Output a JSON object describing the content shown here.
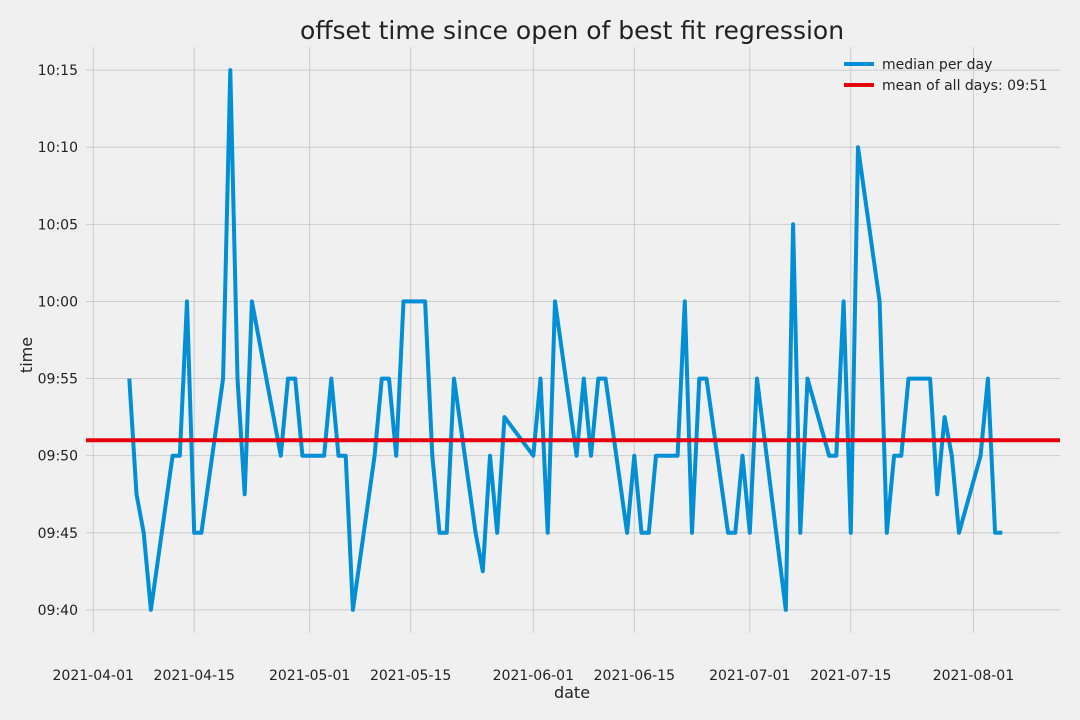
{
  "chart_data": {
    "type": "line",
    "title": "offset time since open of best fit regression",
    "xlabel": "date",
    "ylabel": "time",
    "x_ticks": [
      "2021-04-01",
      "2021-04-15",
      "2021-05-01",
      "2021-05-15",
      "2021-06-01",
      "2021-06-15",
      "2021-07-01",
      "2021-07-15",
      "2021-08-01"
    ],
    "y_ticks": [
      "09:40",
      "09:45",
      "09:50",
      "09:55",
      "10:00",
      "10:05",
      "10:10",
      "10:15"
    ],
    "xlim": [
      "2021-03-31",
      "2021-08-13"
    ],
    "ylim": [
      "09:38.5",
      "10:16.5"
    ],
    "grid": true,
    "legend_position": "top-right",
    "series": [
      {
        "name": "median per day",
        "color": "#008fd5",
        "points": [
          [
            "2021-04-06",
            "09:55"
          ],
          [
            "2021-04-07",
            "09:47.5"
          ],
          [
            "2021-04-08",
            "09:45"
          ],
          [
            "2021-04-09",
            "09:40"
          ],
          [
            "2021-04-12",
            "09:50"
          ],
          [
            "2021-04-13",
            "09:50"
          ],
          [
            "2021-04-14",
            "10:00"
          ],
          [
            "2021-04-15",
            "09:45"
          ],
          [
            "2021-04-16",
            "09:45"
          ],
          [
            "2021-04-19",
            "09:55"
          ],
          [
            "2021-04-20",
            "10:15"
          ],
          [
            "2021-04-21",
            "09:55"
          ],
          [
            "2021-04-22",
            "09:47.5"
          ],
          [
            "2021-04-23",
            "10:00"
          ],
          [
            "2021-04-27",
            "09:50"
          ],
          [
            "2021-04-28",
            "09:55"
          ],
          [
            "2021-04-29",
            "09:55"
          ],
          [
            "2021-04-30",
            "09:50"
          ],
          [
            "2021-05-03",
            "09:50"
          ],
          [
            "2021-05-04",
            "09:55"
          ],
          [
            "2021-05-05",
            "09:50"
          ],
          [
            "2021-05-06",
            "09:50"
          ],
          [
            "2021-05-07",
            "09:40"
          ],
          [
            "2021-05-10",
            "09:50"
          ],
          [
            "2021-05-11",
            "09:55"
          ],
          [
            "2021-05-12",
            "09:55"
          ],
          [
            "2021-05-13",
            "09:50"
          ],
          [
            "2021-05-14",
            "10:00"
          ],
          [
            "2021-05-17",
            "10:00"
          ],
          [
            "2021-05-18",
            "09:50"
          ],
          [
            "2021-05-19",
            "09:45"
          ],
          [
            "2021-05-20",
            "09:45"
          ],
          [
            "2021-05-21",
            "09:55"
          ],
          [
            "2021-05-24",
            "09:45"
          ],
          [
            "2021-05-25",
            "09:42.5"
          ],
          [
            "2021-05-26",
            "09:50"
          ],
          [
            "2021-05-27",
            "09:45"
          ],
          [
            "2021-05-28",
            "09:52.5"
          ],
          [
            "2021-06-01",
            "09:50"
          ],
          [
            "2021-06-02",
            "09:55"
          ],
          [
            "2021-06-03",
            "09:45"
          ],
          [
            "2021-06-04",
            "10:00"
          ],
          [
            "2021-06-07",
            "09:50"
          ],
          [
            "2021-06-08",
            "09:55"
          ],
          [
            "2021-06-09",
            "09:50"
          ],
          [
            "2021-06-10",
            "09:55"
          ],
          [
            "2021-06-11",
            "09:55"
          ],
          [
            "2021-06-14",
            "09:45"
          ],
          [
            "2021-06-15",
            "09:50"
          ],
          [
            "2021-06-16",
            "09:45"
          ],
          [
            "2021-06-17",
            "09:45"
          ],
          [
            "2021-06-18",
            "09:50"
          ],
          [
            "2021-06-21",
            "09:50"
          ],
          [
            "2021-06-22",
            "10:00"
          ],
          [
            "2021-06-23",
            "09:45"
          ],
          [
            "2021-06-24",
            "09:55"
          ],
          [
            "2021-06-25",
            "09:55"
          ],
          [
            "2021-06-28",
            "09:45"
          ],
          [
            "2021-06-29",
            "09:45"
          ],
          [
            "2021-06-30",
            "09:50"
          ],
          [
            "2021-07-01",
            "09:45"
          ],
          [
            "2021-07-02",
            "09:55"
          ],
          [
            "2021-07-06",
            "09:40"
          ],
          [
            "2021-07-07",
            "10:05"
          ],
          [
            "2021-07-08",
            "09:45"
          ],
          [
            "2021-07-09",
            "09:55"
          ],
          [
            "2021-07-12",
            "09:50"
          ],
          [
            "2021-07-13",
            "09:50"
          ],
          [
            "2021-07-14",
            "10:00"
          ],
          [
            "2021-07-15",
            "09:45"
          ],
          [
            "2021-07-16",
            "10:10"
          ],
          [
            "2021-07-19",
            "10:00"
          ],
          [
            "2021-07-20",
            "09:45"
          ],
          [
            "2021-07-21",
            "09:50"
          ],
          [
            "2021-07-22",
            "09:50"
          ],
          [
            "2021-07-23",
            "09:55"
          ],
          [
            "2021-07-26",
            "09:55"
          ],
          [
            "2021-07-27",
            "09:47.5"
          ],
          [
            "2021-07-28",
            "09:52.5"
          ],
          [
            "2021-07-29",
            "09:50"
          ],
          [
            "2021-07-30",
            "09:45"
          ],
          [
            "2021-08-02",
            "09:50"
          ],
          [
            "2021-08-03",
            "09:55"
          ],
          [
            "2021-08-04",
            "09:45"
          ],
          [
            "2021-08-05",
            "09:45"
          ]
        ]
      },
      {
        "name": "mean of all days: 09:51",
        "color": "#e5000b",
        "type": "hline",
        "y": "09:51"
      }
    ]
  }
}
